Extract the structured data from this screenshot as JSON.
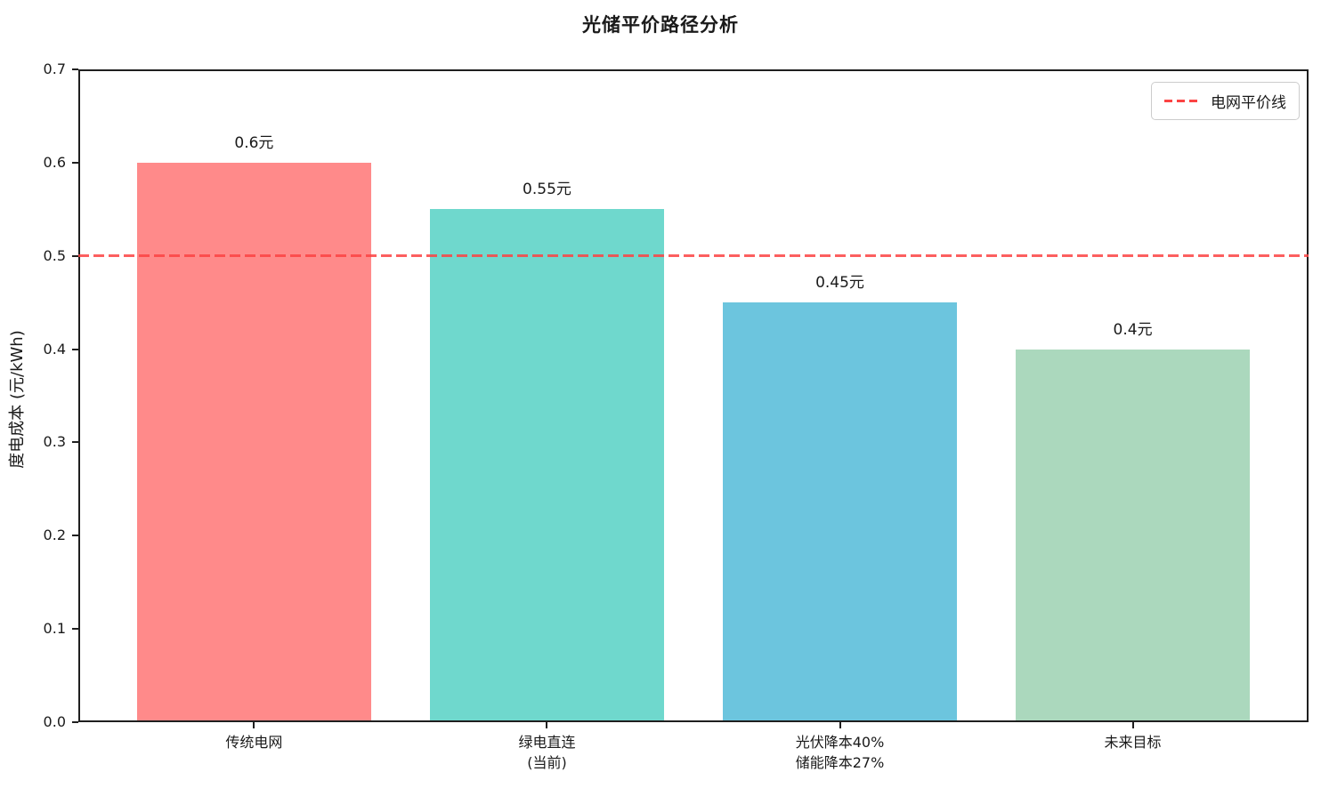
{
  "title": "光储平价路径分析",
  "chart_data": {
    "type": "bar",
    "title": "光储平价路径分析",
    "categories": [
      "传统电网",
      "绿电直连\n(当前)",
      "光伏降本40%\n储能降本27%",
      "未来目标"
    ],
    "values": [
      0.6,
      0.55,
      0.45,
      0.4
    ],
    "value_labels": [
      "0.6元",
      "0.55元",
      "0.45元",
      "0.4元"
    ],
    "bar_colors": [
      "#FF8A8A",
      "#6FD8CD",
      "#6CC5DE",
      "#ABD8BD"
    ],
    "xlabel": "",
    "ylabel": "度电成本 (元/kWh)",
    "ylim": [
      0,
      0.7
    ],
    "xlim": [
      -0.6,
      3.6
    ],
    "bar_width": 0.8,
    "yticks": [
      0.0,
      0.1,
      0.2,
      0.3,
      0.4,
      0.5,
      0.6,
      0.7
    ],
    "ytick_labels": [
      "0.0",
      "0.1",
      "0.2",
      "0.3",
      "0.4",
      "0.5",
      "0.6",
      "0.7"
    ],
    "grid": false,
    "reference_line": {
      "y": 0.5,
      "label": "电网平价线",
      "color": "#FB4343",
      "style": "dashed"
    },
    "legend": {
      "position": "upper right",
      "entries": [
        {
          "label": "电网平价线",
          "color": "#FB4343",
          "style": "dashed"
        }
      ]
    }
  }
}
